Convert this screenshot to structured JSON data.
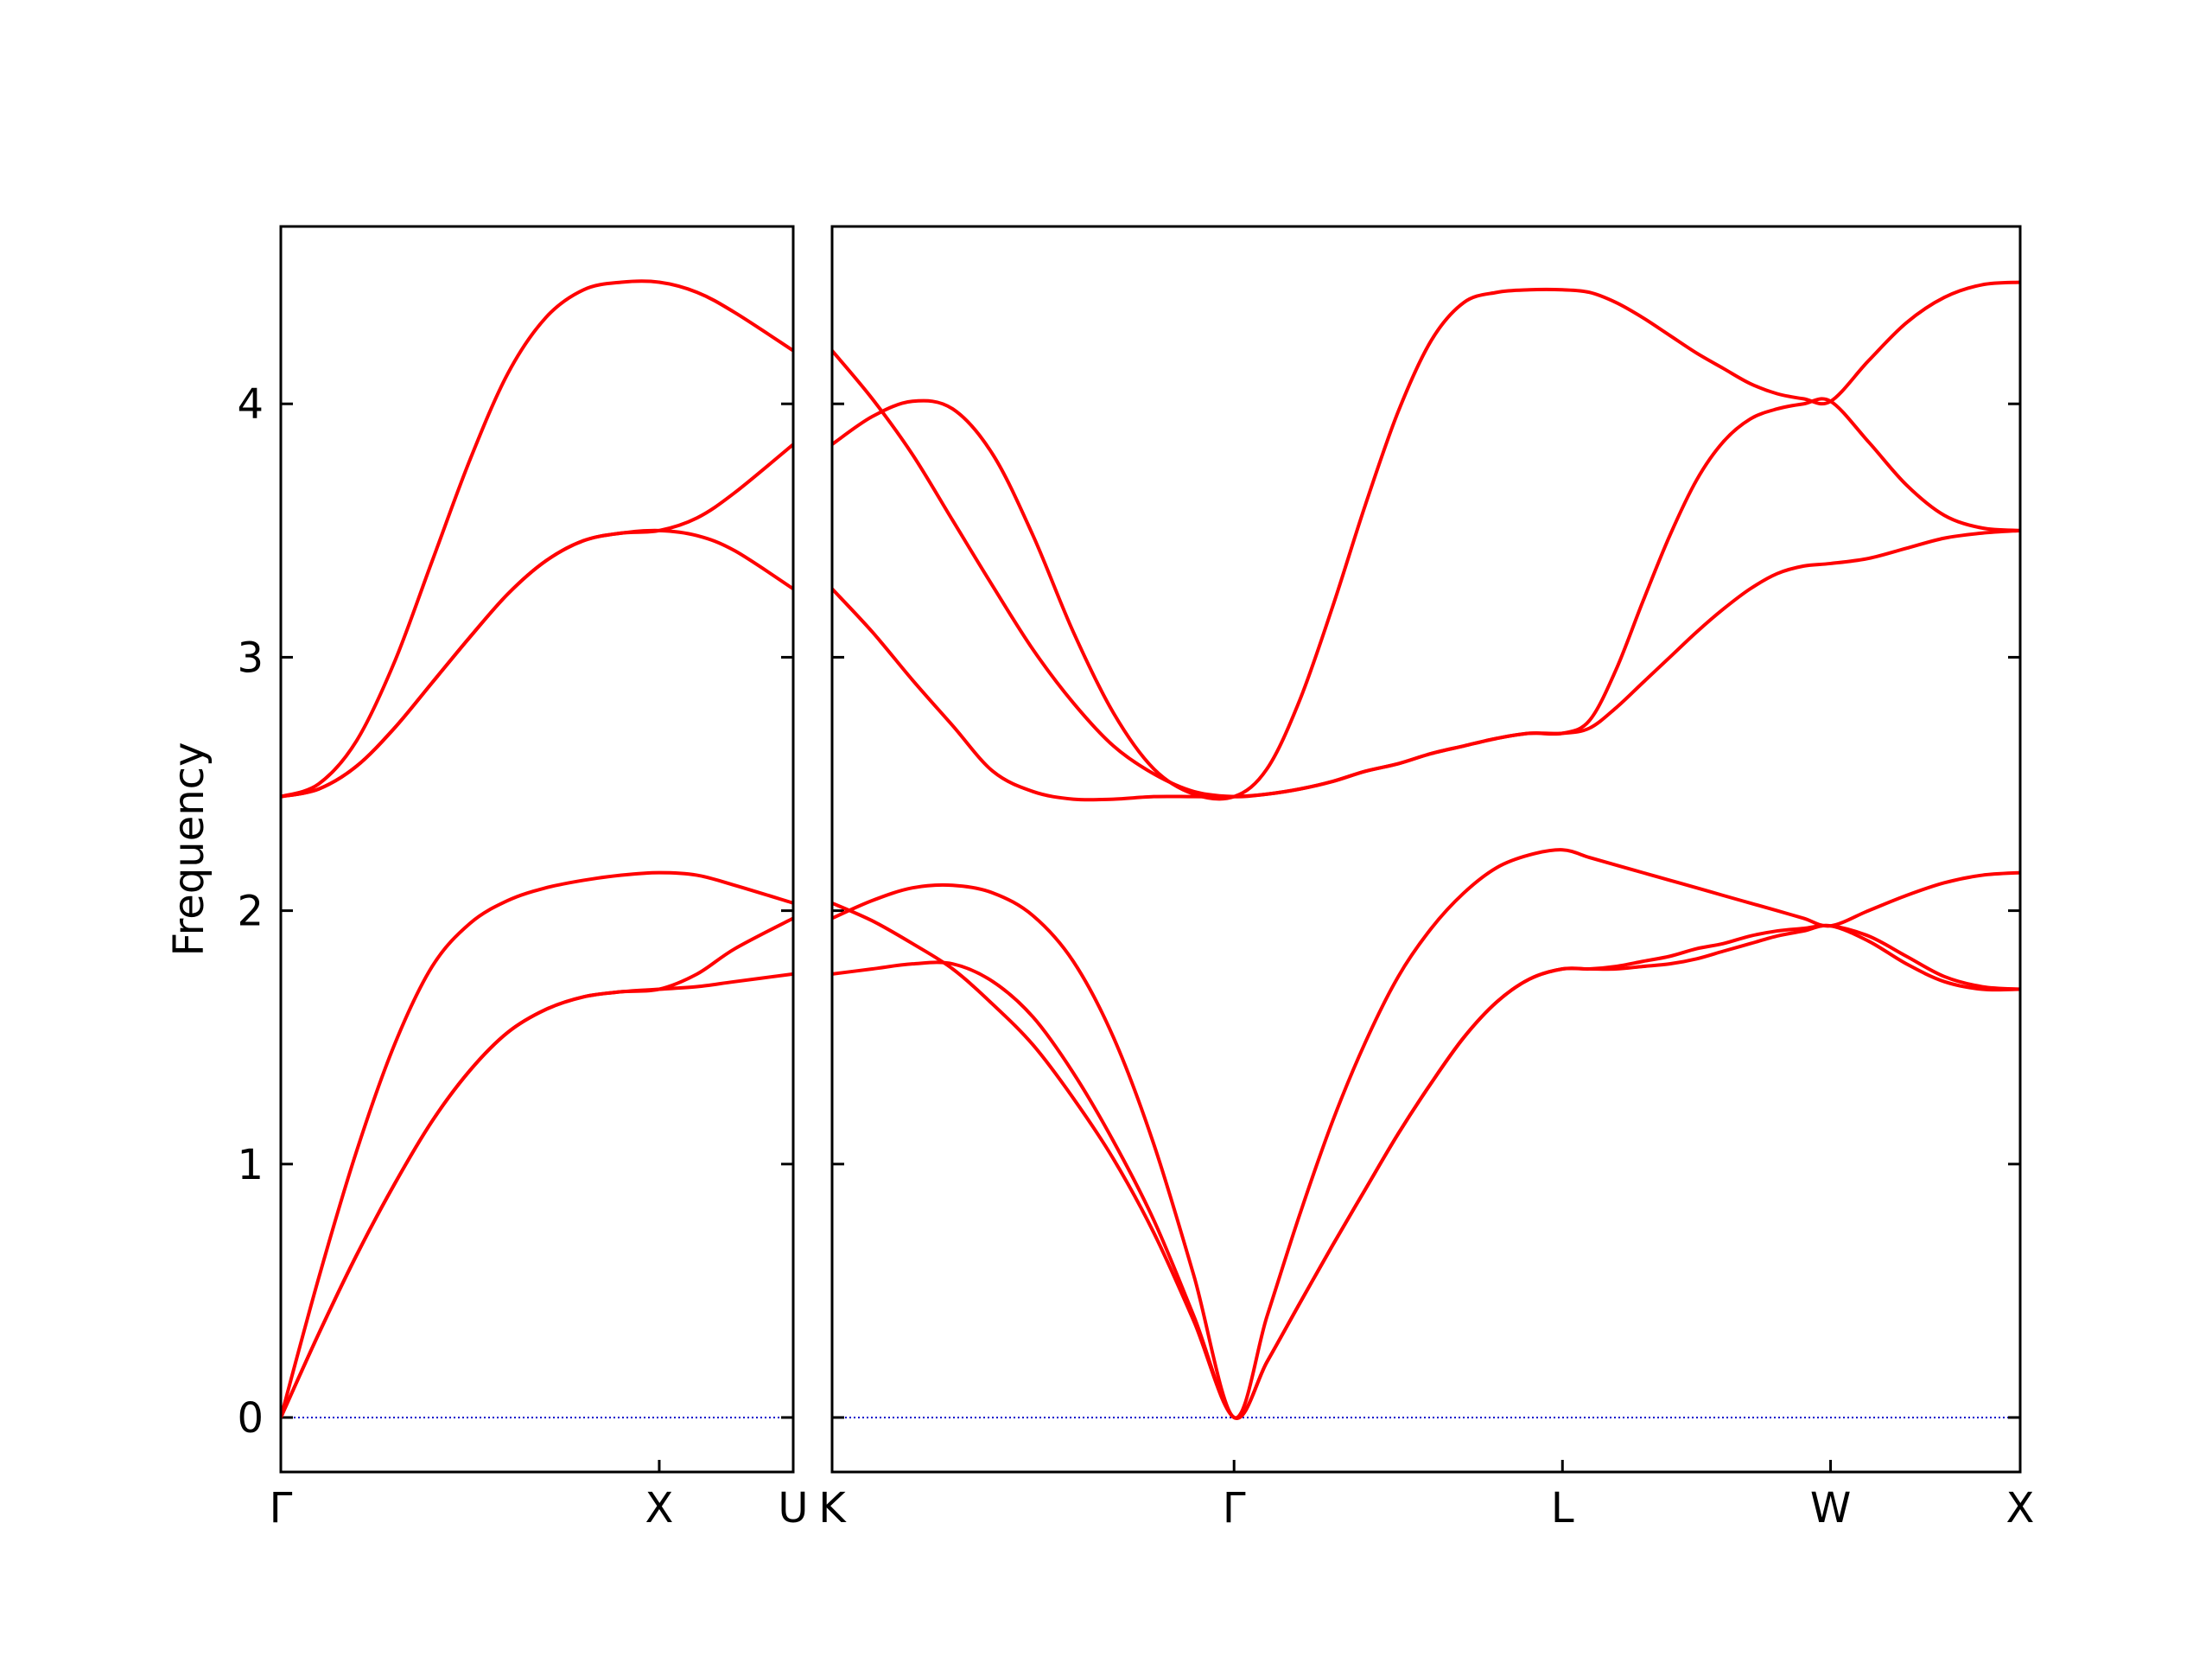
{
  "chart_data": [
    {
      "type": "line",
      "ylabel": "Frequency",
      "xlim": [
        0,
        1.354
      ],
      "ylim": [
        -0.215,
        4.7
      ],
      "yticks": [
        0,
        1,
        2,
        3,
        4
      ],
      "xticks": [
        {
          "value": 0,
          "label": "Γ"
        },
        {
          "value": 1,
          "label": "X"
        },
        {
          "value": 1.354,
          "label": "U"
        }
      ],
      "hline": {
        "y": 0,
        "color": "#0000cc"
      },
      "x": [
        0,
        0.1,
        0.2,
        0.3,
        0.4,
        0.5,
        0.6,
        0.7,
        0.8,
        0.9,
        1.0,
        1.1,
        1.2,
        1.354
      ],
      "series": [
        {
          "color": "#ff0000",
          "values": [
            0,
            0.33,
            0.64,
            0.92,
            1.17,
            1.37,
            1.52,
            1.61,
            1.66,
            1.68,
            1.69,
            1.7,
            1.72,
            1.75
          ]
        },
        {
          "color": "#ff0000",
          "values": [
            0,
            0.33,
            0.64,
            0.92,
            1.17,
            1.37,
            1.52,
            1.61,
            1.66,
            1.68,
            1.69,
            1.75,
            1.85,
            1.97
          ]
        },
        {
          "color": "#ff0000",
          "values": [
            0,
            0.55,
            1.05,
            1.47,
            1.78,
            1.95,
            2.04,
            2.09,
            2.12,
            2.14,
            2.15,
            2.14,
            2.1,
            2.03
          ]
        },
        {
          "color": "#ff0000",
          "values": [
            2.45,
            2.48,
            2.57,
            2.72,
            2.9,
            3.08,
            3.25,
            3.38,
            3.46,
            3.49,
            3.5,
            3.48,
            3.42,
            3.27
          ]
        },
        {
          "color": "#ff0000",
          "values": [
            2.45,
            2.48,
            2.57,
            2.72,
            2.9,
            3.08,
            3.25,
            3.38,
            3.46,
            3.49,
            3.5,
            3.55,
            3.65,
            3.84
          ]
        },
        {
          "color": "#ff0000",
          "values": [
            2.45,
            2.5,
            2.67,
            2.98,
            3.38,
            3.78,
            4.12,
            4.34,
            4.45,
            4.48,
            4.48,
            4.44,
            4.36,
            4.21
          ]
        }
      ]
    },
    {
      "type": "line",
      "xlim": [
        1.354,
        4.487
      ],
      "ylim": [
        -0.215,
        4.7
      ],
      "yticks": [
        0,
        1,
        2,
        3,
        4
      ],
      "xticks": [
        {
          "value": 1.354,
          "label": "K"
        },
        {
          "value": 2.414,
          "label": "Γ"
        },
        {
          "value": 3.28,
          "label": "L"
        },
        {
          "value": 3.987,
          "label": "W"
        },
        {
          "value": 4.487,
          "label": "X"
        }
      ],
      "hline": {
        "y": 0,
        "color": "#0000cc"
      },
      "x": [
        1.354,
        1.46,
        1.566,
        1.672,
        1.778,
        1.884,
        1.99,
        2.096,
        2.202,
        2.308,
        2.414,
        2.501,
        2.587,
        2.674,
        2.76,
        2.847,
        2.934,
        3.02,
        3.107,
        3.193,
        3.28,
        3.351,
        3.421,
        3.492,
        3.563,
        3.634,
        3.704,
        3.775,
        3.846,
        3.916,
        3.987,
        4.087,
        4.187,
        4.287,
        4.387,
        4.487
      ],
      "series": [
        {
          "color": "#ff0000",
          "values": [
            2.03,
            1.96,
            1.87,
            1.77,
            1.63,
            1.47,
            1.26,
            1.02,
            0.73,
            0.38,
            0,
            0.22,
            0.45,
            0.68,
            0.9,
            1.12,
            1.32,
            1.5,
            1.64,
            1.73,
            1.77,
            1.77,
            1.78,
            1.8,
            1.82,
            1.85,
            1.87,
            1.9,
            1.92,
            1.93,
            1.94,
            1.9,
            1.82,
            1.74,
            1.7,
            1.69
          ]
        },
        {
          "color": "#ff0000",
          "values": [
            1.75,
            1.77,
            1.79,
            1.79,
            1.72,
            1.58,
            1.36,
            1.09,
            0.78,
            0.4,
            0,
            0.22,
            0.45,
            0.68,
            0.9,
            1.12,
            1.32,
            1.5,
            1.64,
            1.73,
            1.77,
            1.77,
            1.77,
            1.78,
            1.79,
            1.81,
            1.84,
            1.87,
            1.9,
            1.92,
            1.94,
            1.88,
            1.79,
            1.72,
            1.69,
            1.69
          ]
        },
        {
          "color": "#ff0000",
          "values": [
            1.97,
            2.04,
            2.09,
            2.1,
            2.07,
            1.98,
            1.8,
            1.5,
            1.08,
            0.56,
            0,
            0.4,
            0.8,
            1.17,
            1.48,
            1.74,
            1.93,
            2.07,
            2.17,
            2.22,
            2.24,
            2.21,
            2.18,
            2.15,
            2.12,
            2.09,
            2.06,
            2.03,
            2.0,
            1.97,
            1.94,
            2.0,
            2.06,
            2.11,
            2.14,
            2.15
          ]
        },
        {
          "color": "#ff0000",
          "values": [
            3.27,
            3.1,
            2.91,
            2.73,
            2.55,
            2.47,
            2.44,
            2.44,
            2.45,
            2.45,
            2.45,
            2.46,
            2.48,
            2.51,
            2.55,
            2.58,
            2.62,
            2.65,
            2.68,
            2.7,
            2.7,
            2.72,
            2.8,
            2.9,
            3.0,
            3.1,
            3.19,
            3.27,
            3.33,
            3.36,
            3.37,
            3.39,
            3.43,
            3.47,
            3.49,
            3.5
          ]
        },
        {
          "color": "#ff0000",
          "values": [
            4.21,
            4.02,
            3.8,
            3.54,
            3.28,
            3.03,
            2.82,
            2.65,
            2.54,
            2.47,
            2.45,
            2.46,
            2.48,
            2.51,
            2.55,
            2.58,
            2.62,
            2.65,
            2.68,
            2.7,
            2.7,
            2.75,
            2.95,
            3.22,
            3.48,
            3.7,
            3.85,
            3.94,
            3.98,
            4.0,
            4.01,
            3.85,
            3.68,
            3.56,
            3.51,
            3.5
          ]
        },
        {
          "color": "#ff0000",
          "values": [
            3.84,
            3.95,
            4.01,
            3.98,
            3.8,
            3.48,
            3.1,
            2.78,
            2.56,
            2.46,
            2.45,
            2.56,
            2.83,
            3.2,
            3.6,
            3.97,
            4.25,
            4.4,
            4.44,
            4.45,
            4.45,
            4.44,
            4.4,
            4.34,
            4.27,
            4.2,
            4.14,
            4.08,
            4.04,
            4.02,
            4.01,
            4.17,
            4.32,
            4.42,
            4.47,
            4.48
          ]
        }
      ]
    }
  ]
}
